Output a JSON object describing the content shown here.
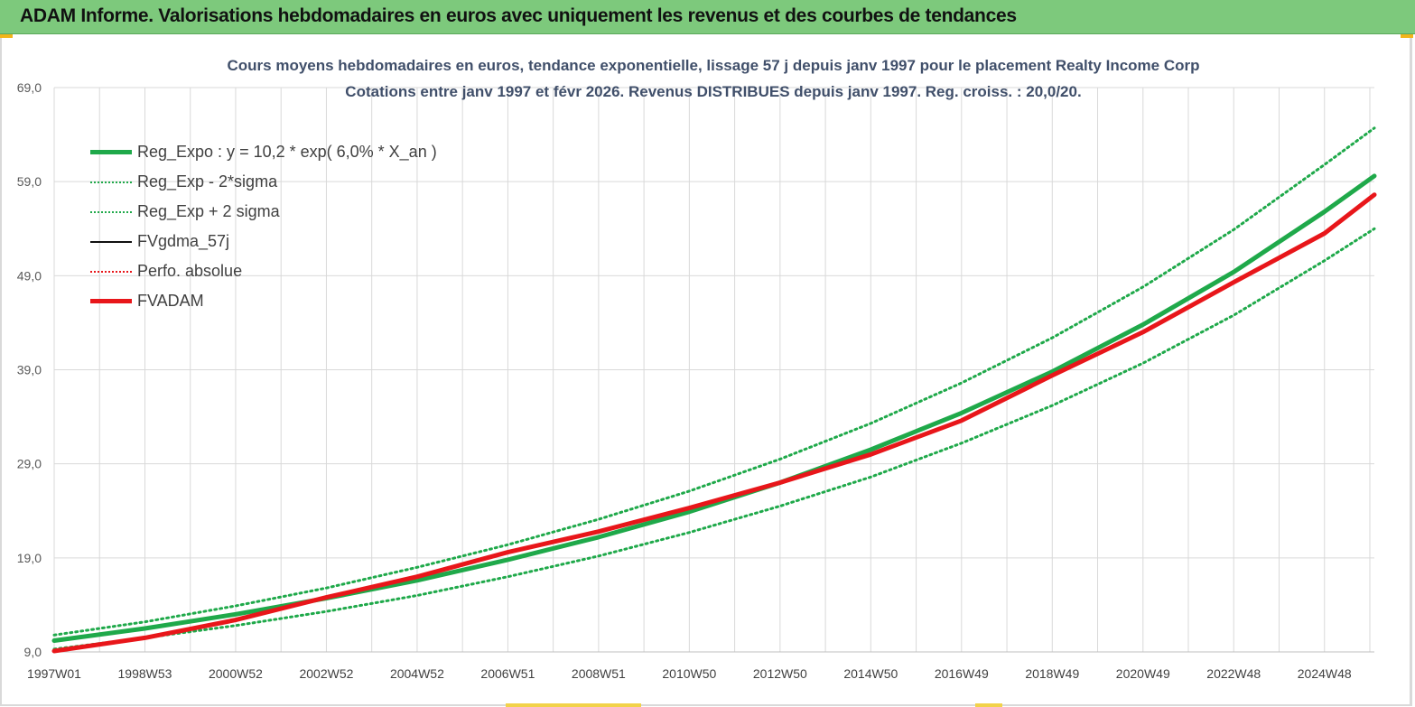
{
  "header": {
    "title": "ADAM Informe. Valorisations hebdomadaires en euros avec uniquement les revenus et des courbes de tendances"
  },
  "colors": {
    "banner": "#7dc97c",
    "green": "#1fa94a",
    "red": "#e8161a",
    "black": "#111111",
    "grid": "#d9d9d9",
    "title": "#404f6a"
  },
  "chart_data": {
    "type": "line",
    "title": "Cours moyens hebdomadaires en euros, tendance exponentielle, lissage 57 j depuis janv 1997 pour le  placement Realty Income Corp",
    "subtitle": "Cotations entre janv 1997 et févr 2026. Revenus DISTRIBUES depuis janv 1997. Reg. croiss. : 20,0/20.",
    "x_tick_labels": [
      "1997W01",
      "1998W53",
      "2000W52",
      "2002W52",
      "2004W52",
      "2006W51",
      "2008W51",
      "2010W50",
      "2012W50",
      "2014W50",
      "2016W49",
      "2018W49",
      "2020W49",
      "2022W48",
      "2024W48"
    ],
    "x": [
      1997,
      1999,
      2001,
      2003,
      2005,
      2007,
      2009,
      2011,
      2013,
      2015,
      2017,
      2019,
      2021,
      2023,
      2025,
      2026.1
    ],
    "x_range": [
      1997,
      2026.1
    ],
    "y_tick_labels": [
      "9,0",
      "19,0",
      "29,0",
      "39,0",
      "49,0",
      "59,0",
      "69,0"
    ],
    "ylim": [
      9,
      69
    ],
    "grid": true,
    "legend_position": "top-left",
    "series": [
      {
        "name": "Reg_Expo : y = 10,2 * exp( 6,0% *  X_an )",
        "color": "#1fa94a",
        "style": "solid-thick",
        "values": [
          10.2,
          11.5,
          13.0,
          14.7,
          16.6,
          18.8,
          21.2,
          23.9,
          27.0,
          30.5,
          34.4,
          38.8,
          43.8,
          49.4,
          55.8,
          59.6
        ]
      },
      {
        "name": "Reg_Exp - 2*sigma",
        "color": "#1fa94a",
        "style": "dotted",
        "values": [
          9.3,
          10.5,
          11.8,
          13.3,
          15.0,
          17.0,
          19.2,
          21.7,
          24.5,
          27.6,
          31.2,
          35.2,
          39.7,
          44.8,
          50.6,
          54.0
        ]
      },
      {
        "name": "Reg_Exp + 2 sigma",
        "color": "#1fa94a",
        "style": "dotted",
        "values": [
          10.8,
          12.2,
          13.9,
          15.8,
          18.0,
          20.4,
          23.1,
          26.1,
          29.5,
          33.3,
          37.6,
          42.4,
          47.8,
          53.9,
          60.8,
          64.7
        ]
      },
      {
        "name": "FVgdma_57j",
        "color": "#111111",
        "style": "solid",
        "values": [
          9.1,
          10.5,
          12.4,
          14.8,
          17.0,
          19.6,
          21.8,
          24.3,
          27.0,
          30.0,
          33.6,
          38.4,
          43.0,
          48.3,
          53.5,
          57.6
        ]
      },
      {
        "name": "Perfo. absolue",
        "color": "#e8161a",
        "style": "dotted",
        "values": [
          9.1,
          10.5,
          12.4,
          14.8,
          17.0,
          19.6,
          21.8,
          24.3,
          27.0,
          30.0,
          33.6,
          38.4,
          43.0,
          48.3,
          53.5,
          57.6
        ]
      },
      {
        "name": "FVADAM",
        "color": "#e8161a",
        "style": "solid-thick",
        "values": [
          9.1,
          10.5,
          12.4,
          14.8,
          17.0,
          19.6,
          21.8,
          24.3,
          27.0,
          30.0,
          33.6,
          38.4,
          43.0,
          48.3,
          53.5,
          57.6
        ]
      }
    ]
  }
}
